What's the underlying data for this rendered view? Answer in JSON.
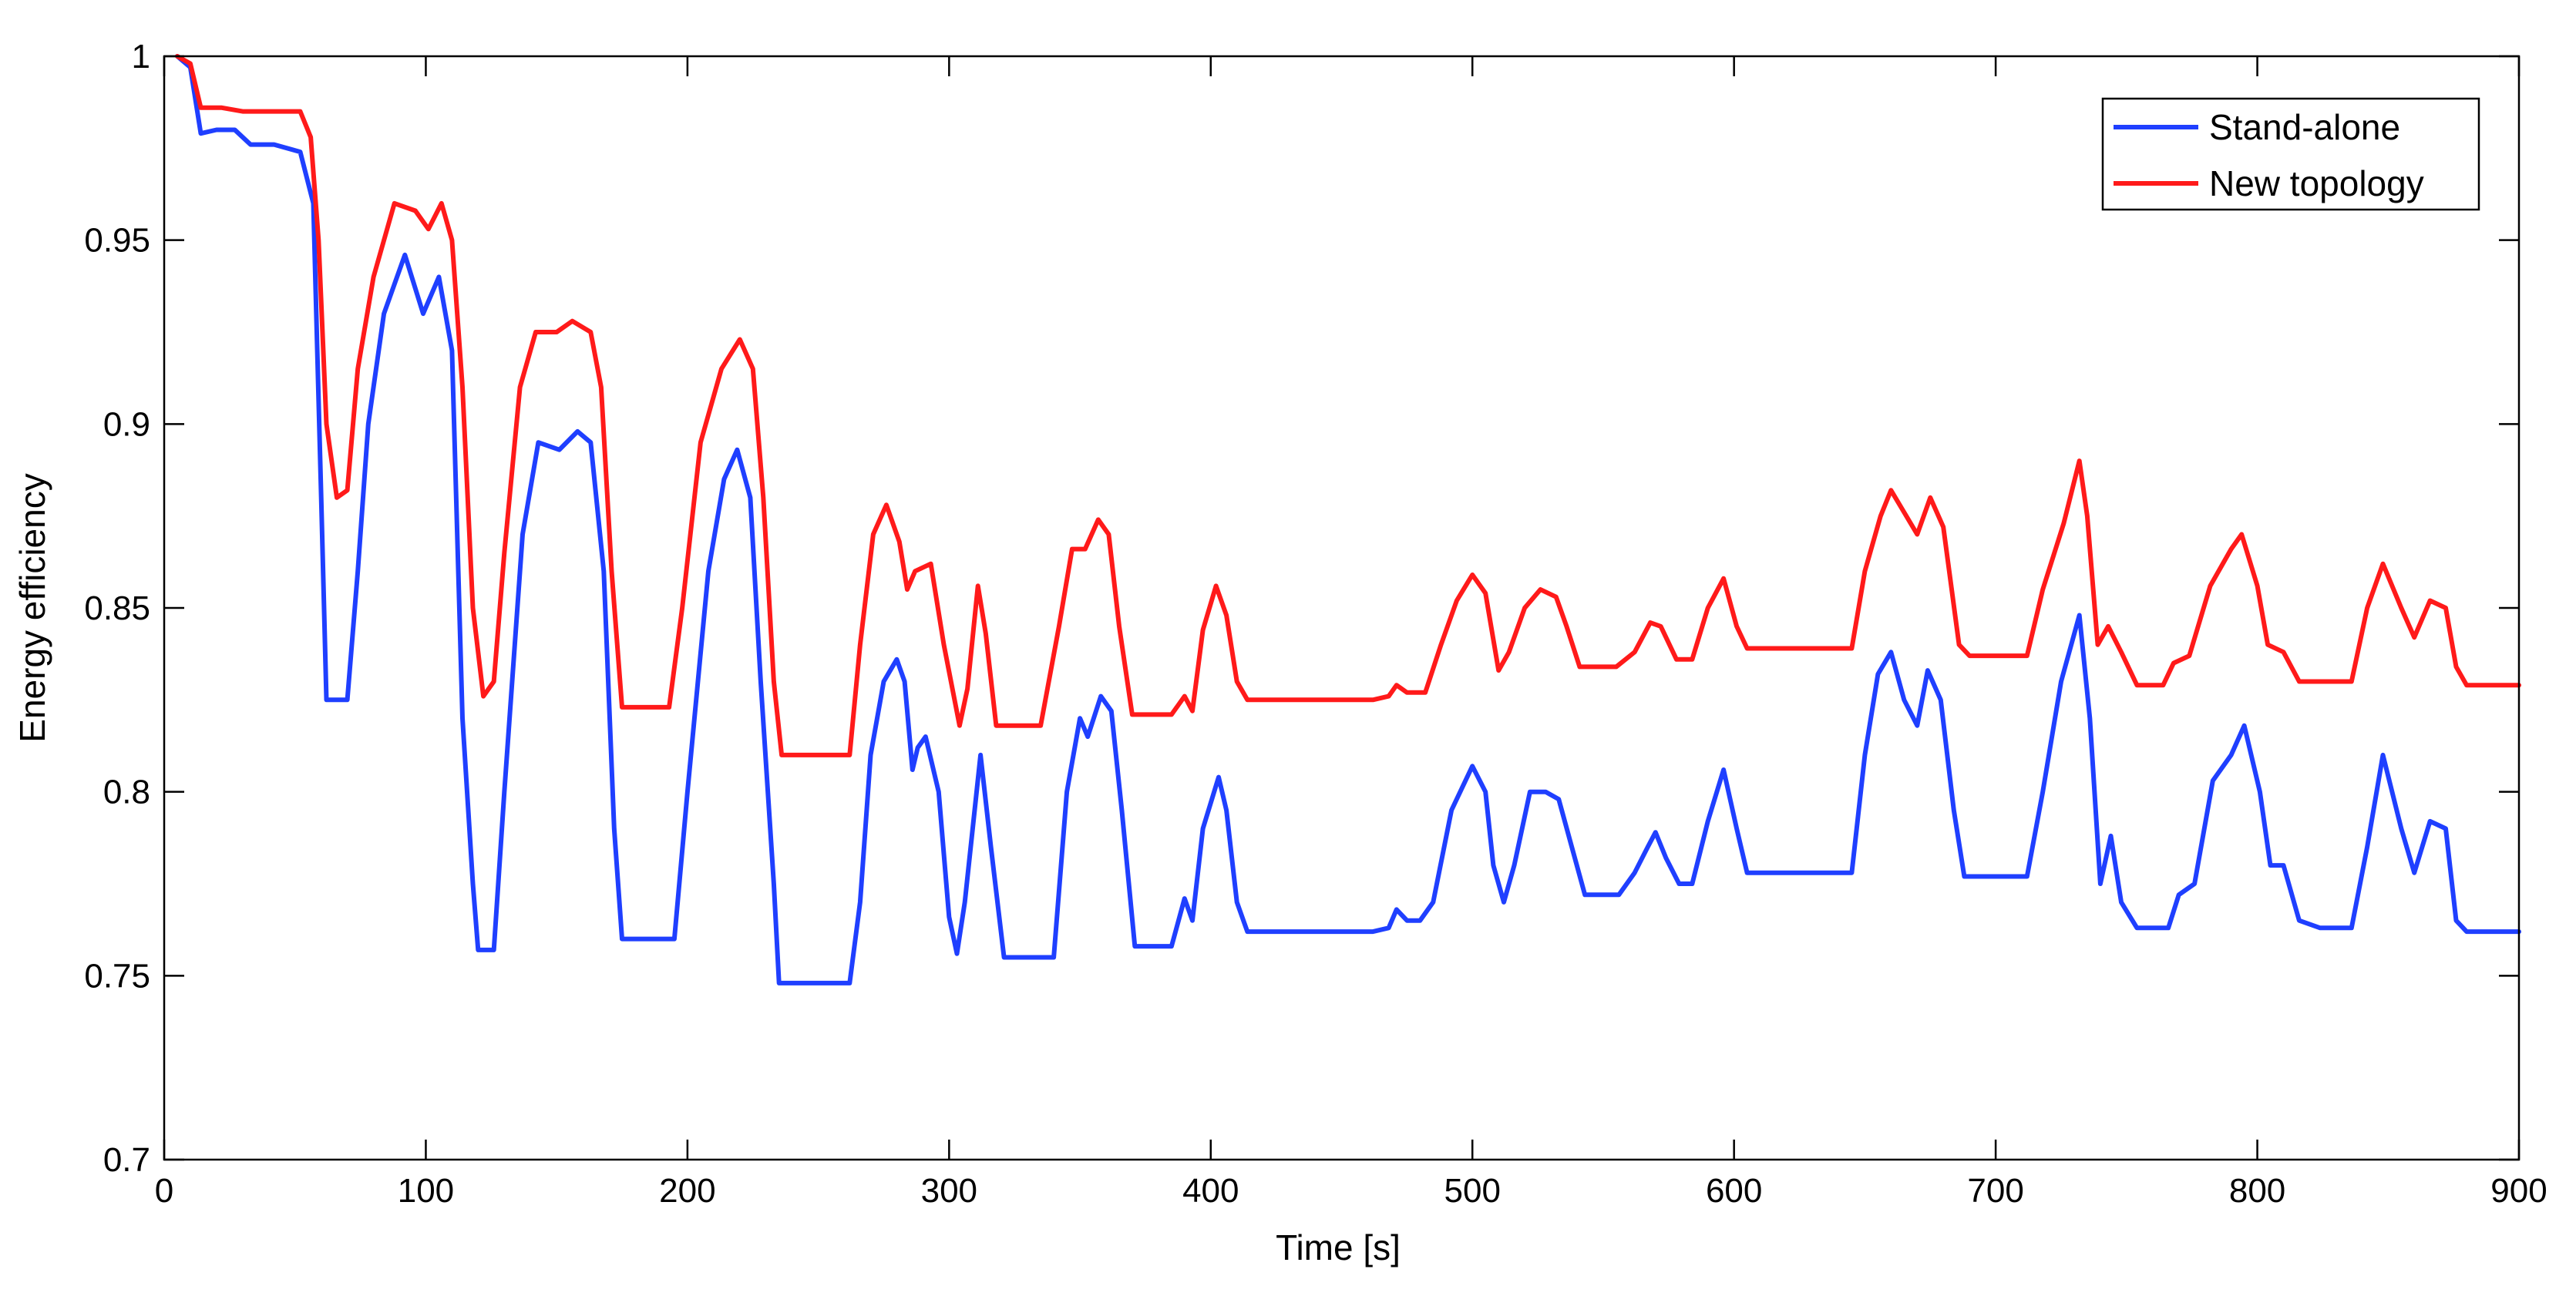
{
  "chart_data": {
    "type": "line",
    "title": "",
    "xlabel": "Time [s]",
    "ylabel": "Energy efficiency",
    "xlim": [
      0,
      900
    ],
    "ylim": [
      0.7,
      1
    ],
    "xticks": [
      0,
      100,
      200,
      300,
      400,
      500,
      600,
      700,
      800,
      900
    ],
    "yticks": [
      0.7,
      0.75,
      0.8,
      0.85,
      0.9,
      0.95,
      1
    ],
    "ytick_labels": [
      "0.7",
      "0.75",
      "0.8",
      "0.85",
      "0.9",
      "0.95",
      "1"
    ],
    "grid": false,
    "legend_position": "top-right",
    "series": [
      {
        "name": "Stand-alone",
        "color": "#1f3fff",
        "points": [
          [
            5,
            1.0
          ],
          [
            10,
            0.997
          ],
          [
            14,
            0.979
          ],
          [
            20,
            0.98
          ],
          [
            27,
            0.98
          ],
          [
            33,
            0.976
          ],
          [
            42,
            0.976
          ],
          [
            52,
            0.974
          ],
          [
            57,
            0.96
          ],
          [
            60,
            0.88
          ],
          [
            62,
            0.825
          ],
          [
            70,
            0.825
          ],
          [
            74,
            0.86
          ],
          [
            78,
            0.9
          ],
          [
            84,
            0.93
          ],
          [
            92,
            0.946
          ],
          [
            99,
            0.93
          ],
          [
            105,
            0.94
          ],
          [
            110,
            0.92
          ],
          [
            114,
            0.82
          ],
          [
            118,
            0.775
          ],
          [
            120,
            0.757
          ],
          [
            126,
            0.757
          ],
          [
            130,
            0.8
          ],
          [
            137,
            0.87
          ],
          [
            143,
            0.895
          ],
          [
            151,
            0.893
          ],
          [
            158,
            0.898
          ],
          [
            163,
            0.895
          ],
          [
            168,
            0.86
          ],
          [
            172,
            0.79
          ],
          [
            175,
            0.76
          ],
          [
            195,
            0.76
          ],
          [
            200,
            0.8
          ],
          [
            208,
            0.86
          ],
          [
            214,
            0.885
          ],
          [
            219,
            0.893
          ],
          [
            224,
            0.88
          ],
          [
            228,
            0.83
          ],
          [
            233,
            0.775
          ],
          [
            235,
            0.748
          ],
          [
            262,
            0.748
          ],
          [
            266,
            0.77
          ],
          [
            270,
            0.81
          ],
          [
            275,
            0.83
          ],
          [
            280,
            0.836
          ],
          [
            283,
            0.83
          ],
          [
            286,
            0.806
          ],
          [
            288,
            0.812
          ],
          [
            291,
            0.815
          ],
          [
            296,
            0.8
          ],
          [
            300,
            0.766
          ],
          [
            303,
            0.756
          ],
          [
            306,
            0.77
          ],
          [
            312,
            0.81
          ],
          [
            316,
            0.785
          ],
          [
            321,
            0.755
          ],
          [
            340,
            0.755
          ],
          [
            345,
            0.8
          ],
          [
            350,
            0.82
          ],
          [
            353,
            0.815
          ],
          [
            358,
            0.826
          ],
          [
            362,
            0.822
          ],
          [
            366,
            0.795
          ],
          [
            371,
            0.758
          ],
          [
            385,
            0.758
          ],
          [
            390,
            0.771
          ],
          [
            393,
            0.765
          ],
          [
            397,
            0.79
          ],
          [
            403,
            0.804
          ],
          [
            406,
            0.795
          ],
          [
            410,
            0.77
          ],
          [
            414,
            0.762
          ],
          [
            462,
            0.762
          ],
          [
            468,
            0.763
          ],
          [
            471,
            0.768
          ],
          [
            475,
            0.765
          ],
          [
            480,
            0.765
          ],
          [
            485,
            0.77
          ],
          [
            492,
            0.795
          ],
          [
            500,
            0.807
          ],
          [
            505,
            0.8
          ],
          [
            508,
            0.78
          ],
          [
            512,
            0.77
          ],
          [
            516,
            0.78
          ],
          [
            522,
            0.8
          ],
          [
            528,
            0.8
          ],
          [
            533,
            0.798
          ],
          [
            538,
            0.785
          ],
          [
            543,
            0.772
          ],
          [
            556,
            0.772
          ],
          [
            562,
            0.778
          ],
          [
            567,
            0.785
          ],
          [
            570,
            0.789
          ],
          [
            574,
            0.782
          ],
          [
            579,
            0.775
          ],
          [
            584,
            0.775
          ],
          [
            590,
            0.792
          ],
          [
            596,
            0.806
          ],
          [
            601,
            0.79
          ],
          [
            605,
            0.778
          ],
          [
            645,
            0.778
          ],
          [
            650,
            0.81
          ],
          [
            655,
            0.832
          ],
          [
            660,
            0.838
          ],
          [
            665,
            0.825
          ],
          [
            670,
            0.818
          ],
          [
            674,
            0.833
          ],
          [
            679,
            0.825
          ],
          [
            684,
            0.795
          ],
          [
            688,
            0.777
          ],
          [
            712,
            0.777
          ],
          [
            718,
            0.8
          ],
          [
            725,
            0.83
          ],
          [
            732,
            0.848
          ],
          [
            736,
            0.82
          ],
          [
            740,
            0.775
          ],
          [
            744,
            0.788
          ],
          [
            748,
            0.77
          ],
          [
            754,
            0.763
          ],
          [
            766,
            0.763
          ],
          [
            770,
            0.772
          ],
          [
            776,
            0.775
          ],
          [
            783,
            0.803
          ],
          [
            790,
            0.81
          ],
          [
            795,
            0.818
          ],
          [
            801,
            0.8
          ],
          [
            805,
            0.78
          ],
          [
            810,
            0.78
          ],
          [
            816,
            0.765
          ],
          [
            824,
            0.763
          ],
          [
            836,
            0.763
          ],
          [
            842,
            0.785
          ],
          [
            848,
            0.81
          ],
          [
            855,
            0.79
          ],
          [
            860,
            0.778
          ],
          [
            866,
            0.792
          ],
          [
            872,
            0.79
          ],
          [
            876,
            0.765
          ],
          [
            880,
            0.762
          ],
          [
            900,
            0.762
          ]
        ]
      },
      {
        "name": "New topology",
        "color": "#ff1a1a",
        "points": [
          [
            5,
            1.0
          ],
          [
            10,
            0.998
          ],
          [
            14,
            0.986
          ],
          [
            22,
            0.986
          ],
          [
            30,
            0.985
          ],
          [
            45,
            0.985
          ],
          [
            52,
            0.985
          ],
          [
            56,
            0.978
          ],
          [
            59,
            0.95
          ],
          [
            62,
            0.9
          ],
          [
            66,
            0.88
          ],
          [
            70,
            0.882
          ],
          [
            74,
            0.915
          ],
          [
            80,
            0.94
          ],
          [
            88,
            0.96
          ],
          [
            96,
            0.958
          ],
          [
            101,
            0.953
          ],
          [
            106,
            0.96
          ],
          [
            110,
            0.95
          ],
          [
            114,
            0.91
          ],
          [
            118,
            0.85
          ],
          [
            122,
            0.826
          ],
          [
            126,
            0.83
          ],
          [
            130,
            0.865
          ],
          [
            136,
            0.91
          ],
          [
            142,
            0.925
          ],
          [
            150,
            0.925
          ],
          [
            156,
            0.928
          ],
          [
            163,
            0.925
          ],
          [
            167,
            0.91
          ],
          [
            171,
            0.86
          ],
          [
            175,
            0.823
          ],
          [
            193,
            0.823
          ],
          [
            198,
            0.85
          ],
          [
            205,
            0.895
          ],
          [
            213,
            0.915
          ],
          [
            220,
            0.923
          ],
          [
            225,
            0.915
          ],
          [
            229,
            0.88
          ],
          [
            233,
            0.83
          ],
          [
            236,
            0.81
          ],
          [
            262,
            0.81
          ],
          [
            266,
            0.84
          ],
          [
            271,
            0.87
          ],
          [
            276,
            0.878
          ],
          [
            281,
            0.868
          ],
          [
            284,
            0.855
          ],
          [
            287,
            0.86
          ],
          [
            293,
            0.862
          ],
          [
            298,
            0.84
          ],
          [
            304,
            0.818
          ],
          [
            307,
            0.828
          ],
          [
            311,
            0.856
          ],
          [
            314,
            0.843
          ],
          [
            318,
            0.818
          ],
          [
            335,
            0.818
          ],
          [
            342,
            0.845
          ],
          [
            347,
            0.866
          ],
          [
            352,
            0.866
          ],
          [
            357,
            0.874
          ],
          [
            361,
            0.87
          ],
          [
            365,
            0.845
          ],
          [
            370,
            0.821
          ],
          [
            385,
            0.821
          ],
          [
            390,
            0.826
          ],
          [
            393,
            0.822
          ],
          [
            397,
            0.844
          ],
          [
            402,
            0.856
          ],
          [
            406,
            0.848
          ],
          [
            410,
            0.83
          ],
          [
            414,
            0.825
          ],
          [
            462,
            0.825
          ],
          [
            468,
            0.826
          ],
          [
            471,
            0.829
          ],
          [
            475,
            0.827
          ],
          [
            482,
            0.827
          ],
          [
            488,
            0.84
          ],
          [
            494,
            0.852
          ],
          [
            500,
            0.859
          ],
          [
            505,
            0.854
          ],
          [
            510,
            0.833
          ],
          [
            514,
            0.838
          ],
          [
            520,
            0.85
          ],
          [
            526,
            0.855
          ],
          [
            532,
            0.853
          ],
          [
            536,
            0.845
          ],
          [
            541,
            0.834
          ],
          [
            555,
            0.834
          ],
          [
            562,
            0.838
          ],
          [
            568,
            0.846
          ],
          [
            572,
            0.845
          ],
          [
            578,
            0.836
          ],
          [
            584,
            0.836
          ],
          [
            590,
            0.85
          ],
          [
            596,
            0.858
          ],
          [
            601,
            0.845
          ],
          [
            605,
            0.839
          ],
          [
            645,
            0.839
          ],
          [
            650,
            0.86
          ],
          [
            656,
            0.875
          ],
          [
            660,
            0.882
          ],
          [
            665,
            0.876
          ],
          [
            670,
            0.87
          ],
          [
            675,
            0.88
          ],
          [
            680,
            0.872
          ],
          [
            686,
            0.84
          ],
          [
            690,
            0.837
          ],
          [
            712,
            0.837
          ],
          [
            718,
            0.855
          ],
          [
            726,
            0.873
          ],
          [
            732,
            0.89
          ],
          [
            735,
            0.875
          ],
          [
            739,
            0.84
          ],
          [
            743,
            0.845
          ],
          [
            748,
            0.838
          ],
          [
            754,
            0.829
          ],
          [
            764,
            0.829
          ],
          [
            768,
            0.835
          ],
          [
            774,
            0.837
          ],
          [
            782,
            0.856
          ],
          [
            790,
            0.866
          ],
          [
            794,
            0.87
          ],
          [
            800,
            0.856
          ],
          [
            804,
            0.84
          ],
          [
            810,
            0.838
          ],
          [
            816,
            0.83
          ],
          [
            836,
            0.83
          ],
          [
            842,
            0.85
          ],
          [
            848,
            0.862
          ],
          [
            855,
            0.85
          ],
          [
            860,
            0.842
          ],
          [
            866,
            0.852
          ],
          [
            872,
            0.85
          ],
          [
            876,
            0.834
          ],
          [
            880,
            0.829
          ],
          [
            900,
            0.829
          ]
        ]
      }
    ]
  }
}
